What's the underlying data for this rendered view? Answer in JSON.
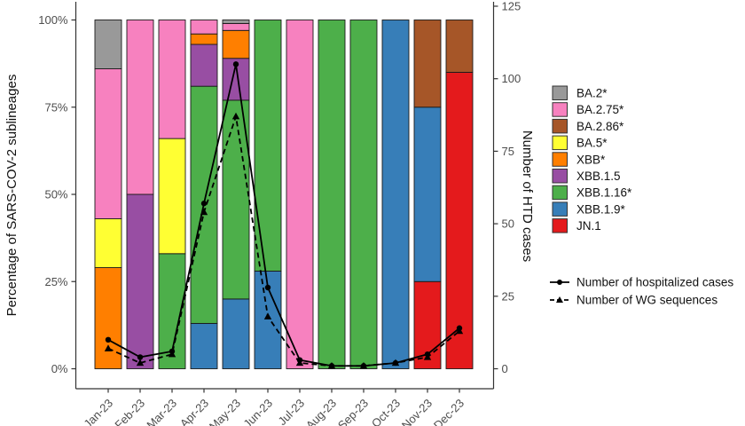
{
  "chart_data": {
    "type": "bar",
    "subtype": "stacked-percent-bars-with-line-overlay",
    "title": "",
    "categories": [
      "Jan-23",
      "Feb-23",
      "Mar-23",
      "Apr-23",
      "May-23",
      "Jun-23",
      "Jul-23",
      "Aug-23",
      "Sep-23",
      "Oct-23",
      "Nov-23",
      "Dec-23"
    ],
    "stack_series": [
      {
        "name": "BA.2*",
        "color": "#999999",
        "values": [
          14,
          0,
          0,
          0,
          1,
          0,
          0,
          0,
          0,
          0,
          0,
          0
        ]
      },
      {
        "name": "BA.2.75*",
        "color": "#F781BF",
        "values": [
          43,
          50,
          34,
          4,
          2,
          0,
          100,
          0,
          0,
          0,
          0,
          0
        ]
      },
      {
        "name": "BA.2.86*",
        "color": "#A65628",
        "values": [
          0,
          0,
          0,
          0,
          0,
          0,
          0,
          0,
          0,
          0,
          25,
          15
        ]
      },
      {
        "name": "BA.5*",
        "color": "#FFFF33",
        "values": [
          14,
          0,
          33,
          0,
          0,
          0,
          0,
          0,
          0,
          0,
          0,
          0
        ]
      },
      {
        "name": "XBB*",
        "color": "#FF7F00",
        "values": [
          29,
          0,
          0,
          3,
          8,
          0,
          0,
          0,
          0,
          0,
          0,
          0
        ]
      },
      {
        "name": "XBB.1.5",
        "color": "#984EA3",
        "values": [
          0,
          50,
          0,
          12,
          12,
          0,
          0,
          0,
          0,
          0,
          0,
          0
        ]
      },
      {
        "name": "XBB.1.16*",
        "color": "#4DAF4A",
        "values": [
          0,
          0,
          33,
          68,
          57,
          72,
          0,
          100,
          100,
          0,
          0,
          0
        ]
      },
      {
        "name": "XBB.1.9*",
        "color": "#377EB8",
        "values": [
          0,
          0,
          0,
          13,
          20,
          28,
          0,
          0,
          0,
          100,
          50,
          0
        ]
      },
      {
        "name": "JN.1",
        "color": "#E41A1C",
        "values": [
          0,
          0,
          0,
          0,
          0,
          0,
          0,
          0,
          0,
          0,
          25,
          85
        ]
      }
    ],
    "line_series": [
      {
        "name": "Number of hospitalized cases",
        "line_style": "solid",
        "marker": "circle",
        "color": "#000000",
        "values": [
          10,
          4,
          6,
          57,
          105,
          28,
          3,
          1,
          1,
          2,
          5,
          14
        ]
      },
      {
        "name": "Number of WG sequences",
        "line_style": "dashed",
        "marker": "triangle",
        "color": "#000000",
        "values": [
          7,
          2,
          5,
          54,
          87,
          18,
          2,
          1,
          1,
          2,
          4,
          13
        ]
      }
    ],
    "left_axis": {
      "label": "Percentage of SARS-COV-2 sublineages",
      "tick_labels": [
        "0%",
        "25%",
        "50%",
        "75%",
        "100%"
      ],
      "tick_values": [
        0,
        25,
        50,
        75,
        100
      ],
      "range": [
        0,
        100
      ]
    },
    "right_axis": {
      "label": "Number of HTD cases",
      "tick_labels": [
        "0",
        "25",
        "50",
        "75",
        "100",
        "125"
      ],
      "tick_values": [
        0,
        25,
        50,
        75,
        100,
        125
      ],
      "range": [
        0,
        125
      ]
    },
    "legend": {
      "position": "right"
    },
    "bar_outline_color": "#1a1a1a",
    "axis_line_color": "#333333"
  }
}
